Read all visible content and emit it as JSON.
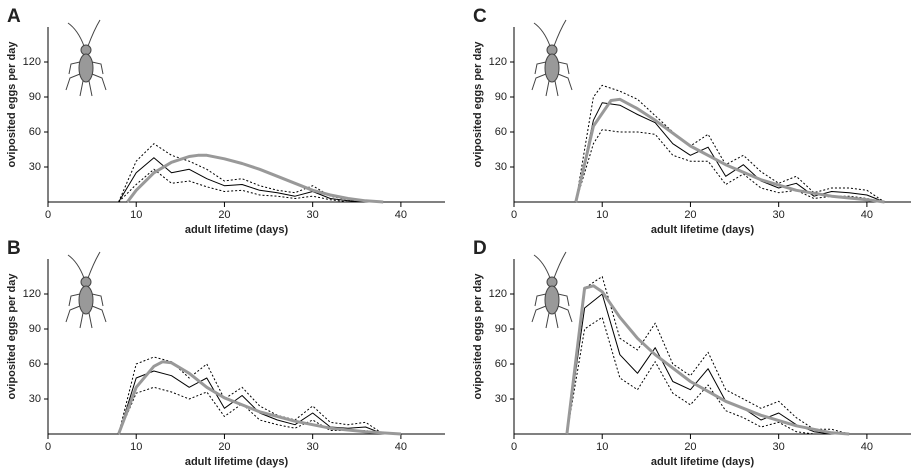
{
  "chart_data": [
    {
      "type": "line",
      "panel_label": "A",
      "xlabel": "adult lifetime (days)",
      "ylabel": "oviposited eggs per day",
      "xlim": [
        0,
        45
      ],
      "ylim": [
        0,
        150
      ],
      "xticks": [
        0,
        10,
        20,
        30,
        40
      ],
      "yticks": [
        30,
        60,
        90,
        120
      ],
      "series": [
        {
          "color": "#000000",
          "style": "solid",
          "x": [
            8,
            10,
            12,
            14,
            16,
            18,
            20,
            22,
            24,
            26,
            28,
            30,
            32,
            34,
            36
          ],
          "values": [
            0,
            25,
            38,
            25,
            28,
            20,
            14,
            15,
            10,
            8,
            5,
            9,
            3,
            1,
            0
          ]
        },
        {
          "color": "#000000",
          "style": "dotted",
          "x": [
            8,
            10,
            12,
            14,
            16,
            18,
            20,
            22,
            24,
            26,
            28,
            30,
            32,
            34,
            36
          ],
          "values": [
            0,
            35,
            50,
            40,
            35,
            28,
            18,
            20,
            14,
            10,
            8,
            14,
            5,
            2,
            0
          ]
        },
        {
          "color": "#000000",
          "style": "dotted",
          "x": [
            8,
            10,
            12,
            14,
            16,
            18,
            20,
            22,
            24,
            26,
            28,
            30,
            32,
            34,
            36
          ],
          "values": [
            0,
            15,
            28,
            16,
            18,
            13,
            9,
            10,
            6,
            5,
            3,
            5,
            2,
            0,
            0
          ]
        },
        {
          "color": "#999999",
          "style": "thick",
          "x": [
            9,
            10,
            12,
            14,
            16,
            17,
            18,
            20,
            22,
            24,
            26,
            28,
            30,
            32,
            34,
            36,
            38
          ],
          "values": [
            0,
            10,
            25,
            34,
            39,
            40,
            40,
            37,
            33,
            28,
            22,
            16,
            10,
            6,
            3,
            1,
            0
          ]
        }
      ]
    },
    {
      "type": "line",
      "panel_label": "B",
      "xlabel": "adult lifetime (days)",
      "ylabel": "oviposited eggs per day",
      "xlim": [
        0,
        45
      ],
      "ylim": [
        0,
        150
      ],
      "xticks": [
        0,
        10,
        20,
        30,
        40
      ],
      "yticks": [
        30,
        60,
        90,
        120
      ],
      "series": [
        {
          "color": "#000000",
          "style": "solid",
          "x": [
            8,
            10,
            12,
            14,
            16,
            18,
            20,
            22,
            24,
            26,
            28,
            30,
            32,
            34,
            36,
            38
          ],
          "values": [
            0,
            48,
            54,
            50,
            40,
            48,
            22,
            33,
            18,
            12,
            8,
            18,
            6,
            5,
            6,
            0
          ]
        },
        {
          "color": "#000000",
          "style": "dotted",
          "x": [
            8,
            10,
            12,
            14,
            16,
            18,
            20,
            22,
            24,
            26,
            28,
            30,
            32,
            34,
            36,
            38
          ],
          "values": [
            0,
            60,
            66,
            62,
            48,
            60,
            30,
            40,
            24,
            16,
            12,
            24,
            10,
            8,
            10,
            0
          ]
        },
        {
          "color": "#000000",
          "style": "dotted",
          "x": [
            8,
            10,
            12,
            14,
            16,
            18,
            20,
            22,
            24,
            26,
            28,
            30,
            32,
            34,
            36,
            38
          ],
          "values": [
            0,
            35,
            40,
            36,
            30,
            36,
            15,
            26,
            12,
            8,
            5,
            12,
            3,
            3,
            3,
            0
          ]
        },
        {
          "color": "#999999",
          "style": "thick",
          "x": [
            8,
            10,
            12,
            13,
            14,
            16,
            18,
            20,
            24,
            28,
            32,
            36,
            40
          ],
          "values": [
            0,
            40,
            58,
            62,
            61,
            52,
            40,
            31,
            19,
            11,
            5,
            2,
            0
          ]
        }
      ]
    },
    {
      "type": "line",
      "panel_label": "C",
      "xlabel": "adult lifetime (days)",
      "ylabel": "oviposited eggs per day",
      "xlim": [
        0,
        45
      ],
      "ylim": [
        0,
        150
      ],
      "xticks": [
        0,
        10,
        20,
        30,
        40
      ],
      "yticks": [
        30,
        60,
        90,
        120
      ],
      "series": [
        {
          "color": "#000000",
          "style": "solid",
          "x": [
            7,
            9,
            10,
            12,
            14,
            16,
            18,
            20,
            22,
            24,
            26,
            28,
            30,
            32,
            34,
            36,
            38,
            40,
            42
          ],
          "values": [
            0,
            70,
            85,
            83,
            75,
            68,
            50,
            40,
            47,
            22,
            32,
            18,
            12,
            16,
            5,
            9,
            8,
            6,
            0
          ]
        },
        {
          "color": "#000000",
          "style": "dotted",
          "x": [
            7,
            9,
            10,
            12,
            14,
            16,
            18,
            20,
            22,
            24,
            26,
            28,
            30,
            32,
            34,
            36,
            38,
            40,
            42
          ],
          "values": [
            0,
            90,
            100,
            95,
            88,
            74,
            60,
            48,
            58,
            32,
            40,
            26,
            16,
            22,
            8,
            12,
            12,
            10,
            0
          ]
        },
        {
          "color": "#000000",
          "style": "dotted",
          "x": [
            7,
            9,
            10,
            12,
            14,
            16,
            18,
            20,
            22,
            24,
            26,
            28,
            30,
            32,
            34,
            36,
            38,
            40,
            42
          ],
          "values": [
            0,
            50,
            62,
            60,
            60,
            58,
            40,
            35,
            35,
            15,
            24,
            12,
            8,
            10,
            3,
            5,
            5,
            3,
            0
          ]
        },
        {
          "color": "#999999",
          "style": "thick",
          "x": [
            7,
            9,
            11,
            12,
            14,
            16,
            20,
            24,
            28,
            32,
            36,
            40,
            42
          ],
          "values": [
            0,
            65,
            87,
            88,
            80,
            70,
            48,
            32,
            19,
            10,
            5,
            2,
            0
          ]
        }
      ]
    },
    {
      "type": "line",
      "panel_label": "D",
      "xlabel": "adult lifetime (days)",
      "ylabel": "oviposited eggs per day",
      "xlim": [
        0,
        45
      ],
      "ylim": [
        0,
        150
      ],
      "xticks": [
        0,
        10,
        20,
        30,
        40
      ],
      "yticks": [
        30,
        60,
        90,
        120
      ],
      "series": [
        {
          "color": "#000000",
          "style": "solid",
          "x": [
            6,
            8,
            10,
            12,
            14,
            16,
            18,
            20,
            22,
            24,
            26,
            28,
            30,
            32,
            34,
            36,
            38
          ],
          "values": [
            0,
            108,
            120,
            68,
            52,
            74,
            45,
            38,
            56,
            28,
            22,
            12,
            18,
            8,
            2,
            0,
            0
          ]
        },
        {
          "color": "#000000",
          "style": "dotted",
          "x": [
            6,
            8,
            10,
            12,
            14,
            16,
            18,
            20,
            22,
            24,
            26,
            28,
            30,
            32,
            34,
            36,
            38
          ],
          "values": [
            0,
            125,
            135,
            82,
            72,
            95,
            60,
            50,
            70,
            38,
            30,
            22,
            28,
            14,
            4,
            4,
            0
          ]
        },
        {
          "color": "#000000",
          "style": "dotted",
          "x": [
            6,
            8,
            10,
            12,
            14,
            16,
            18,
            20,
            22,
            24,
            26,
            28,
            30,
            32,
            34,
            36,
            38
          ],
          "values": [
            0,
            90,
            100,
            48,
            38,
            62,
            35,
            25,
            42,
            20,
            14,
            6,
            10,
            2,
            0,
            0,
            0
          ]
        },
        {
          "color": "#999999",
          "style": "thick",
          "x": [
            6,
            8,
            9,
            10,
            12,
            14,
            16,
            20,
            24,
            28,
            32,
            36,
            38
          ],
          "values": [
            0,
            125,
            127,
            122,
            100,
            82,
            68,
            45,
            28,
            16,
            7,
            1,
            0
          ]
        }
      ]
    }
  ]
}
